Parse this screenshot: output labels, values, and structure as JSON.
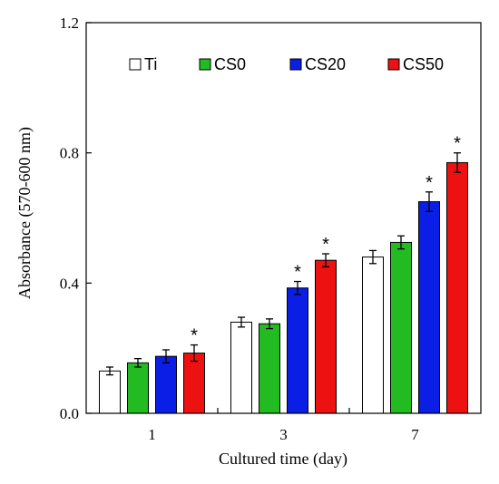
{
  "chart_data": {
    "type": "bar",
    "xlabel": "Cultured time (day)",
    "ylabel": "Absorbance (570-600 nm)",
    "ylim": [
      0,
      1.2
    ],
    "yticks": [
      "0.0",
      "0.4",
      "0.8",
      "1.2"
    ],
    "categories": [
      "1",
      "3",
      "7"
    ],
    "legend_placement": "top",
    "significance_marker": "*",
    "series": [
      {
        "name": "Ti",
        "color": "#ffffff",
        "values": [
          0.13,
          0.28,
          0.48
        ],
        "errors": [
          0.012,
          0.015,
          0.02
        ],
        "significant": [
          false,
          false,
          false
        ]
      },
      {
        "name": "CS0",
        "color": "#22bb22",
        "values": [
          0.155,
          0.275,
          0.525
        ],
        "errors": [
          0.013,
          0.015,
          0.02
        ],
        "significant": [
          false,
          false,
          false
        ]
      },
      {
        "name": "CS20",
        "color": "#0a1ee6",
        "values": [
          0.175,
          0.385,
          0.65
        ],
        "errors": [
          0.02,
          0.02,
          0.03
        ],
        "significant": [
          false,
          true,
          true
        ]
      },
      {
        "name": "CS50",
        "color": "#ee1111",
        "values": [
          0.185,
          0.47,
          0.77
        ],
        "errors": [
          0.025,
          0.02,
          0.03
        ],
        "significant": [
          true,
          true,
          true
        ]
      }
    ]
  }
}
